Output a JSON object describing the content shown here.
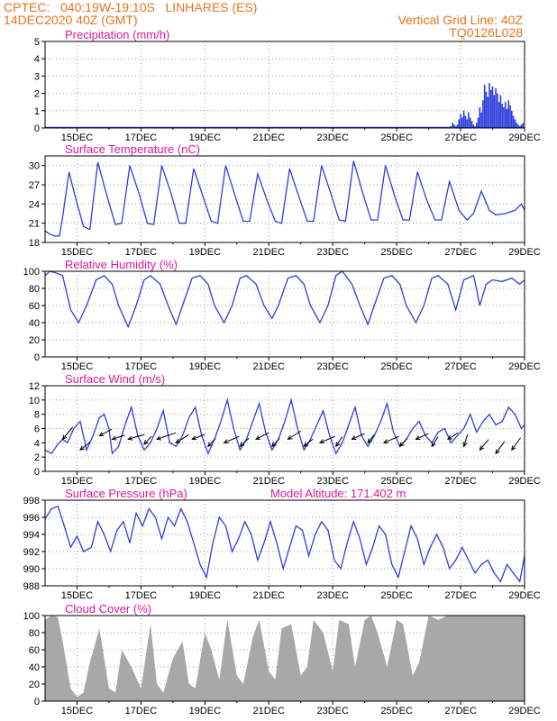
{
  "header": {
    "line1": "CPTEC:   040:19W-19:10S   LINHARES (ES)",
    "line2": "14DEC2020 40Z (GMT)",
    "right1": "Vertical Grid Line: 40Z",
    "right2": "TQ0126L028"
  },
  "colors": {
    "header": "#e8731c",
    "title": "#e0179a",
    "series": "#2b3fdc",
    "cloud": "#a8a8a8",
    "arrow": "#000000"
  },
  "x_axis": {
    "tick_labels": [
      "15DEC",
      "17DEC",
      "19DEC",
      "21DEC",
      "23DEC",
      "25DEC",
      "27DEC",
      "29DEC"
    ],
    "tick_days": [
      15,
      17,
      19,
      21,
      23,
      25,
      27,
      29
    ],
    "range_days": [
      14.0,
      29.0
    ]
  },
  "chart_data": [
    {
      "type": "bar",
      "title": "Precipitation (mm/h)",
      "ylim": [
        0,
        5
      ],
      "yticks": [
        "0",
        "1",
        "2",
        "3",
        "4",
        "5"
      ],
      "x": [
        26.7,
        26.75,
        26.8,
        26.85,
        26.9,
        26.95,
        27.0,
        27.05,
        27.1,
        27.15,
        27.2,
        27.25,
        27.3,
        27.35,
        27.4,
        27.45,
        27.5,
        27.55,
        27.6,
        27.65,
        27.7,
        27.75,
        27.8,
        27.85,
        27.9,
        27.95,
        28.0,
        28.05,
        28.1,
        28.15,
        28.2,
        28.25,
        28.3,
        28.35,
        28.4,
        28.45,
        28.5,
        28.55,
        28.6,
        28.65,
        28.7,
        28.75,
        28.8,
        28.85,
        28.9,
        28.95
      ],
      "values": [
        0.1,
        0.3,
        0.2,
        0.1,
        0.2,
        0.5,
        0.8,
        0.6,
        1.0,
        0.7,
        0.5,
        0.9,
        0.6,
        0.4,
        0.2,
        0.1,
        0.3,
        0.6,
        1.2,
        0.9,
        1.6,
        2.5,
        2.1,
        1.8,
        2.6,
        2.2,
        2.4,
        1.9,
        2.3,
        2.0,
        1.5,
        1.9,
        1.4,
        1.2,
        1.5,
        1.1,
        1.6,
        1.3,
        1.0,
        0.7,
        0.5,
        0.3,
        0.2,
        0.1,
        0.2,
        0.3
      ]
    },
    {
      "type": "line",
      "title": "Surface Temperature (nC)",
      "ylim": [
        18,
        31.5
      ],
      "yticks": [
        "18",
        "21",
        "24",
        "27",
        "30"
      ],
      "x": [
        14.0,
        14.15,
        14.3,
        14.45,
        14.55,
        14.75,
        14.95,
        15.2,
        15.4,
        15.65,
        15.95,
        16.2,
        16.4,
        16.65,
        16.95,
        17.2,
        17.4,
        17.65,
        17.95,
        18.2,
        18.4,
        18.65,
        18.95,
        19.2,
        19.4,
        19.65,
        19.95,
        20.2,
        20.4,
        20.65,
        20.95,
        21.2,
        21.4,
        21.65,
        21.95,
        22.2,
        22.4,
        22.65,
        22.95,
        23.2,
        23.4,
        23.65,
        23.95,
        24.2,
        24.4,
        24.65,
        24.95,
        25.2,
        25.4,
        25.65,
        25.95,
        26.2,
        26.4,
        26.65,
        26.95,
        27.2,
        27.4,
        27.65,
        27.9,
        28.1,
        28.4,
        28.7,
        28.9,
        29.0
      ],
      "values": [
        19.8,
        19.3,
        19.0,
        19.0,
        22.0,
        29.0,
        25.0,
        20.5,
        20.0,
        30.5,
        25.0,
        20.8,
        21.0,
        30.0,
        25.5,
        21.0,
        20.8,
        30.0,
        25.5,
        21.0,
        21.0,
        29.5,
        25.0,
        21.3,
        21.0,
        30.0,
        25.2,
        21.3,
        21.3,
        28.7,
        24.5,
        21.3,
        21.0,
        29.5,
        25.0,
        21.3,
        21.3,
        30.0,
        25.5,
        21.5,
        21.3,
        30.7,
        25.5,
        21.5,
        21.5,
        30.0,
        25.0,
        21.5,
        21.5,
        29.0,
        24.5,
        21.5,
        21.5,
        27.5,
        23.0,
        21.5,
        22.5,
        26.0,
        23.0,
        22.3,
        22.5,
        23.0,
        24.0,
        23.0
      ]
    },
    {
      "type": "line",
      "title": "Relative Humidity (%)",
      "ylim": [
        0,
        100
      ],
      "yticks": [
        "0",
        "20",
        "40",
        "60",
        "80",
        "100"
      ],
      "x": [
        14.0,
        14.15,
        14.35,
        14.55,
        14.8,
        15.05,
        15.3,
        15.6,
        15.85,
        16.1,
        16.3,
        16.6,
        16.85,
        17.1,
        17.3,
        17.6,
        17.85,
        18.1,
        18.3,
        18.6,
        18.85,
        19.1,
        19.3,
        19.6,
        19.85,
        20.1,
        20.3,
        20.6,
        20.85,
        21.1,
        21.3,
        21.6,
        21.85,
        22.1,
        22.3,
        22.6,
        22.85,
        23.1,
        23.3,
        23.6,
        23.85,
        24.1,
        24.3,
        24.6,
        24.85,
        25.1,
        25.3,
        25.6,
        25.85,
        26.1,
        26.3,
        26.6,
        26.85,
        27.1,
        27.4,
        27.45,
        27.6,
        27.8,
        28.0,
        28.3,
        28.6,
        28.85,
        29.0
      ],
      "values": [
        95,
        100,
        98,
        95,
        55,
        40,
        60,
        90,
        95,
        85,
        60,
        35,
        60,
        90,
        95,
        85,
        60,
        38,
        60,
        92,
        95,
        85,
        60,
        40,
        60,
        92,
        95,
        85,
        60,
        45,
        60,
        92,
        95,
        85,
        60,
        40,
        60,
        95,
        100,
        85,
        60,
        38,
        60,
        92,
        95,
        85,
        60,
        40,
        60,
        92,
        95,
        85,
        55,
        90,
        95,
        88,
        60,
        85,
        90,
        88,
        92,
        85,
        90
      ]
    },
    {
      "type": "line",
      "title": "Surface Wind (m/s)",
      "ylim": [
        0,
        12
      ],
      "yticks": [
        "0",
        "2",
        "4",
        "6",
        "8",
        "10",
        "12"
      ],
      "x": [
        14.0,
        14.2,
        14.4,
        14.55,
        14.7,
        14.9,
        15.1,
        15.3,
        15.5,
        15.7,
        15.85,
        16.0,
        16.1,
        16.3,
        16.5,
        16.7,
        16.9,
        17.1,
        17.3,
        17.5,
        17.7,
        17.9,
        18.1,
        18.3,
        18.5,
        18.7,
        18.9,
        19.1,
        19.3,
        19.5,
        19.7,
        19.9,
        20.1,
        20.3,
        20.5,
        20.7,
        20.9,
        21.1,
        21.3,
        21.5,
        21.7,
        21.9,
        22.1,
        22.3,
        22.5,
        22.7,
        22.9,
        23.1,
        23.3,
        23.5,
        23.7,
        23.9,
        24.1,
        24.3,
        24.5,
        24.7,
        24.9,
        25.1,
        25.3,
        25.5,
        25.7,
        25.9,
        26.1,
        26.3,
        26.5,
        26.7,
        26.9,
        27.1,
        27.3,
        27.5,
        27.7,
        27.9,
        28.1,
        28.3,
        28.5,
        28.7,
        28.9,
        29.0
      ],
      "values": [
        3.0,
        2.5,
        3.8,
        4.5,
        4.0,
        6.0,
        7.0,
        3.0,
        5.0,
        7.5,
        8.0,
        6.0,
        2.5,
        3.5,
        6.5,
        9.0,
        5.0,
        3.0,
        4.0,
        6.0,
        8.5,
        4.0,
        3.5,
        5.0,
        7.5,
        9.0,
        5.0,
        2.5,
        4.5,
        7.0,
        10.0,
        6.0,
        3.0,
        4.5,
        7.0,
        9.5,
        5.5,
        3.0,
        4.5,
        7.0,
        10.0,
        6.0,
        3.0,
        4.5,
        6.5,
        8.5,
        5.0,
        2.5,
        4.0,
        6.5,
        9.0,
        5.0,
        3.5,
        5.0,
        7.0,
        9.5,
        5.5,
        3.5,
        4.5,
        6.0,
        7.0,
        5.0,
        4.0,
        5.5,
        6.0,
        4.0,
        5.0,
        6.0,
        8.0,
        5.5,
        7.0,
        8.0,
        6.5,
        7.0,
        9.0,
        8.0,
        6.0,
        6.5
      ],
      "arrows": [
        {
          "x": 14.55,
          "y": 4.5,
          "u": 0.8,
          "v": 1.5
        },
        {
          "x": 15.1,
          "y": 3.0,
          "u": 0.8,
          "v": 1.0
        },
        {
          "x": 15.7,
          "y": 5.0,
          "u": 1.0,
          "v": 0.8
        },
        {
          "x": 16.1,
          "y": 4.5,
          "u": 1.0,
          "v": 0.5
        },
        {
          "x": 16.6,
          "y": 4.5,
          "u": 1.3,
          "v": 0.6
        },
        {
          "x": 17.1,
          "y": 3.8,
          "u": 0.6,
          "v": 1.0
        },
        {
          "x": 17.5,
          "y": 4.5,
          "u": 1.5,
          "v": 0.8
        },
        {
          "x": 18.1,
          "y": 4.0,
          "u": 1.0,
          "v": 1.0
        },
        {
          "x": 18.6,
          "y": 4.5,
          "u": 1.0,
          "v": 0.6
        },
        {
          "x": 19.1,
          "y": 3.5,
          "u": 0.6,
          "v": 1.0
        },
        {
          "x": 19.6,
          "y": 4.0,
          "u": 1.2,
          "v": 0.8
        },
        {
          "x": 20.1,
          "y": 3.5,
          "u": 0.7,
          "v": 1.0
        },
        {
          "x": 20.6,
          "y": 4.5,
          "u": 1.0,
          "v": 0.8
        },
        {
          "x": 21.1,
          "y": 3.5,
          "u": 0.6,
          "v": 1.0
        },
        {
          "x": 21.6,
          "y": 4.5,
          "u": 1.0,
          "v": 1.0
        },
        {
          "x": 22.1,
          "y": 3.5,
          "u": 0.7,
          "v": 0.9
        },
        {
          "x": 22.6,
          "y": 4.0,
          "u": 1.2,
          "v": 0.8
        },
        {
          "x": 23.1,
          "y": 3.5,
          "u": 0.5,
          "v": 1.2
        },
        {
          "x": 23.6,
          "y": 4.5,
          "u": 1.0,
          "v": 0.7
        },
        {
          "x": 24.1,
          "y": 4.0,
          "u": 0.5,
          "v": 1.0
        },
        {
          "x": 24.6,
          "y": 4.0,
          "u": 1.2,
          "v": 0.8
        },
        {
          "x": 25.1,
          "y": 3.5,
          "u": 0.6,
          "v": 1.0
        },
        {
          "x": 25.6,
          "y": 4.5,
          "u": 1.0,
          "v": 0.7
        },
        {
          "x": 26.1,
          "y": 3.5,
          "u": 0.5,
          "v": 1.2
        },
        {
          "x": 26.6,
          "y": 4.5,
          "u": 0.8,
          "v": 0.8
        },
        {
          "x": 27.1,
          "y": 3.5,
          "u": 0.3,
          "v": 1.5
        },
        {
          "x": 27.6,
          "y": 3.0,
          "u": 0.7,
          "v": 1.3
        },
        {
          "x": 28.1,
          "y": 2.5,
          "u": 0.7,
          "v": 1.5
        },
        {
          "x": 28.6,
          "y": 3.0,
          "u": 0.7,
          "v": 1.5
        }
      ]
    },
    {
      "type": "line",
      "title": "Surface Pressure (hPa)",
      "extra_label": "Model Altitude: 171.402  m",
      "ylim": [
        988,
        998
      ],
      "yticks": [
        "988",
        "990",
        "992",
        "994",
        "996",
        "998"
      ],
      "x": [
        14.0,
        14.2,
        14.4,
        14.6,
        14.8,
        15.0,
        15.2,
        15.45,
        15.65,
        15.85,
        16.05,
        16.25,
        16.45,
        16.65,
        16.85,
        17.05,
        17.25,
        17.45,
        17.65,
        17.85,
        18.05,
        18.25,
        18.45,
        18.65,
        18.85,
        19.05,
        19.25,
        19.45,
        19.65,
        19.85,
        20.05,
        20.25,
        20.45,
        20.65,
        20.85,
        21.05,
        21.25,
        21.45,
        21.65,
        21.85,
        22.05,
        22.25,
        22.45,
        22.65,
        22.85,
        23.05,
        23.25,
        23.45,
        23.65,
        23.85,
        24.05,
        24.25,
        24.45,
        24.65,
        24.85,
        25.05,
        25.25,
        25.45,
        25.65,
        25.85,
        26.05,
        26.25,
        26.45,
        26.65,
        26.85,
        27.05,
        27.25,
        27.45,
        27.65,
        27.85,
        28.05,
        28.25,
        28.45,
        28.65,
        28.85,
        29.0
      ],
      "values": [
        995.8,
        997.0,
        997.3,
        995.0,
        992.5,
        993.8,
        992.0,
        992.5,
        995.5,
        994.0,
        992.0,
        994.5,
        995.5,
        993.0,
        996.5,
        995.0,
        997.0,
        996.0,
        993.5,
        996.0,
        995.0,
        997.0,
        995.5,
        993.0,
        990.5,
        989.0,
        993.0,
        996.0,
        995.0,
        992.0,
        993.5,
        995.5,
        994.0,
        991.0,
        993.0,
        995.5,
        993.0,
        990.0,
        992.5,
        995.0,
        994.5,
        991.5,
        994.0,
        995.5,
        994.5,
        991.0,
        990.0,
        993.0,
        995.5,
        993.5,
        990.5,
        992.5,
        995.0,
        994.0,
        990.5,
        989.0,
        992.0,
        995.0,
        993.5,
        990.5,
        992.5,
        994.0,
        992.5,
        990.0,
        991.0,
        992.5,
        991.0,
        989.5,
        990.5,
        991.0,
        989.5,
        988.5,
        990.5,
        989.5,
        988.5,
        991.5
      ]
    },
    {
      "type": "area",
      "title": "Cloud Cover (%)",
      "ylim": [
        0,
        100
      ],
      "yticks": [
        "0",
        "20",
        "40",
        "60",
        "80",
        "100"
      ],
      "x": [
        14.0,
        14.2,
        14.4,
        14.55,
        14.8,
        15.0,
        15.2,
        15.4,
        15.7,
        16.0,
        16.2,
        16.4,
        16.7,
        17.0,
        17.3,
        17.5,
        17.7,
        18.0,
        18.3,
        18.5,
        18.7,
        19.0,
        19.2,
        19.45,
        19.7,
        20.0,
        20.2,
        20.5,
        20.7,
        21.0,
        21.2,
        21.4,
        21.7,
        22.0,
        22.2,
        22.4,
        22.7,
        23.0,
        23.2,
        23.5,
        23.7,
        24.0,
        24.2,
        24.4,
        24.7,
        25.0,
        25.2,
        25.5,
        25.7,
        26.0,
        26.3,
        26.6,
        27.0,
        27.4,
        27.8,
        28.2,
        28.6,
        29.0
      ],
      "values": [
        95,
        100,
        98,
        70,
        15,
        5,
        10,
        45,
        85,
        15,
        10,
        60,
        40,
        15,
        90,
        20,
        10,
        50,
        70,
        20,
        15,
        80,
        60,
        25,
        95,
        30,
        20,
        75,
        95,
        35,
        25,
        85,
        90,
        30,
        40,
        95,
        80,
        35,
        95,
        90,
        40,
        95,
        100,
        80,
        40,
        95,
        90,
        30,
        45,
        100,
        95,
        100,
        100,
        100,
        100,
        100,
        100,
        100
      ]
    }
  ]
}
